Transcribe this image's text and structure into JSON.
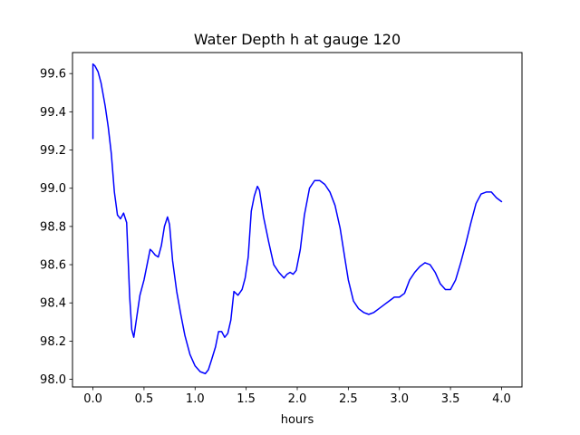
{
  "chart_data": {
    "type": "line",
    "title": "Water Depth h at gauge 120",
    "xlabel": "hours",
    "ylabel": "",
    "xlim": [
      -0.2,
      4.2
    ],
    "ylim": [
      97.96,
      99.71
    ],
    "xticks": [
      0.0,
      0.5,
      1.0,
      1.5,
      2.0,
      2.5,
      3.0,
      3.5,
      4.0
    ],
    "xtick_labels": [
      "0.0",
      "0.5",
      "1.0",
      "1.5",
      "2.0",
      "2.5",
      "3.0",
      "3.5",
      "4.0"
    ],
    "yticks": [
      98.0,
      98.2,
      98.4,
      98.6,
      98.8,
      99.0,
      99.2,
      99.4,
      99.6
    ],
    "ytick_labels": [
      "98.0",
      "98.2",
      "98.4",
      "98.6",
      "98.8",
      "99.0",
      "99.2",
      "99.4",
      "99.6"
    ],
    "grid": false,
    "legend": "none",
    "series": [
      {
        "color": "#0000ff",
        "x": [
          0.0,
          0.0,
          0.02,
          0.05,
          0.08,
          0.12,
          0.15,
          0.18,
          0.21,
          0.24,
          0.27,
          0.3,
          0.33,
          0.36,
          0.38,
          0.4,
          0.43,
          0.46,
          0.5,
          0.53,
          0.56,
          0.58,
          0.61,
          0.64,
          0.67,
          0.7,
          0.73,
          0.75,
          0.78,
          0.82,
          0.86,
          0.9,
          0.95,
          1.0,
          1.05,
          1.1,
          1.13,
          1.16,
          1.2,
          1.23,
          1.26,
          1.29,
          1.32,
          1.35,
          1.38,
          1.42,
          1.46,
          1.49,
          1.52,
          1.55,
          1.58,
          1.61,
          1.63,
          1.67,
          1.72,
          1.77,
          1.82,
          1.87,
          1.9,
          1.93,
          1.96,
          1.99,
          2.03,
          2.07,
          2.12,
          2.17,
          2.22,
          2.27,
          2.32,
          2.37,
          2.42,
          2.47,
          2.5,
          2.55,
          2.6,
          2.65,
          2.7,
          2.75,
          2.8,
          2.85,
          2.9,
          2.95,
          3.0,
          3.05,
          3.1,
          3.15,
          3.2,
          3.25,
          3.3,
          3.35,
          3.4,
          3.45,
          3.5,
          3.55,
          3.6,
          3.65,
          3.7,
          3.75,
          3.8,
          3.85,
          3.9,
          3.95,
          4.0
        ],
        "y": [
          99.26,
          99.65,
          99.64,
          99.61,
          99.55,
          99.43,
          99.32,
          99.18,
          98.98,
          98.86,
          98.84,
          98.87,
          98.82,
          98.43,
          98.26,
          98.22,
          98.33,
          98.44,
          98.52,
          98.6,
          98.68,
          98.67,
          98.65,
          98.64,
          98.7,
          98.8,
          98.85,
          98.81,
          98.62,
          98.46,
          98.34,
          98.23,
          98.13,
          98.07,
          98.04,
          98.03,
          98.05,
          98.1,
          98.17,
          98.25,
          98.25,
          98.22,
          98.24,
          98.31,
          98.46,
          98.44,
          98.47,
          98.53,
          98.64,
          98.88,
          98.96,
          99.01,
          98.99,
          98.85,
          98.72,
          98.6,
          98.56,
          98.53,
          98.55,
          98.56,
          98.55,
          98.57,
          98.68,
          98.86,
          99.0,
          99.04,
          99.04,
          99.02,
          98.98,
          98.91,
          98.79,
          98.62,
          98.52,
          98.41,
          98.37,
          98.35,
          98.34,
          98.35,
          98.37,
          98.39,
          98.41,
          98.43,
          98.43,
          98.45,
          98.52,
          98.56,
          98.59,
          98.61,
          98.6,
          98.56,
          98.5,
          98.47,
          98.47,
          98.52,
          98.61,
          98.71,
          98.82,
          98.92,
          98.97,
          98.98,
          98.98,
          98.95,
          98.93
        ]
      }
    ]
  }
}
